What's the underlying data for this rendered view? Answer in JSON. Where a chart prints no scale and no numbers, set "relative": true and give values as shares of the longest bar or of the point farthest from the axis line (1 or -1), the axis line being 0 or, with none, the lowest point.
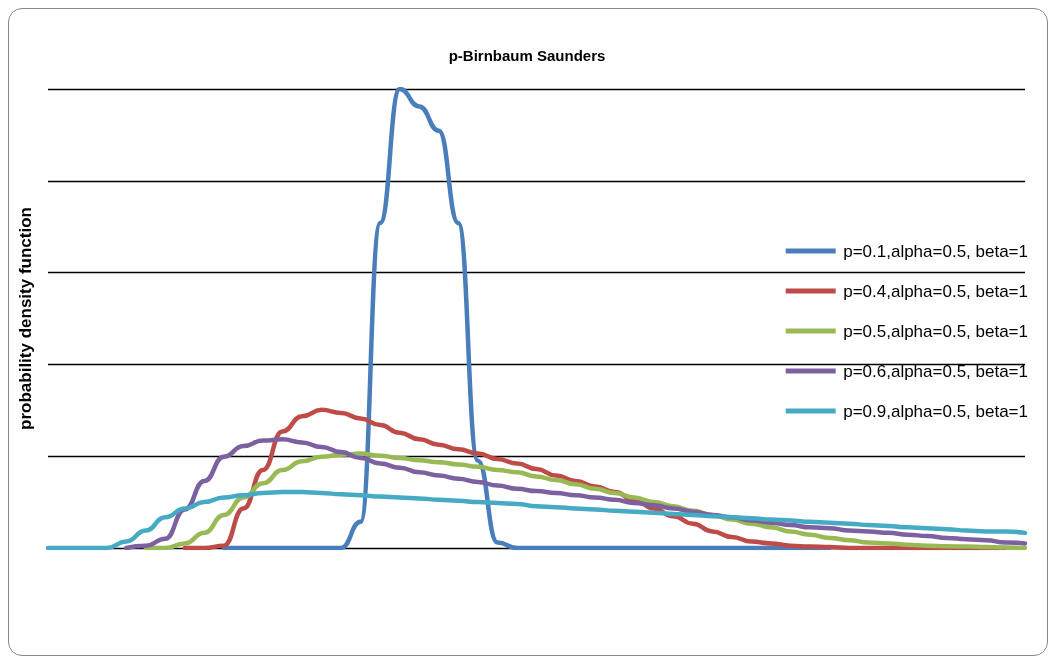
{
  "chart_data": {
    "type": "line",
    "title": "p-Birnbaum Saunders",
    "ylabel": "probability density function",
    "relative": true,
    "grid": "y",
    "legend": "right",
    "marker": "none",
    "line_style": "solid",
    "categories": [
      null,
      null,
      null,
      null,
      null,
      null,
      null,
      null,
      null,
      null,
      null,
      null,
      null,
      null,
      null,
      null,
      null,
      null,
      null,
      null,
      null,
      null,
      null,
      null,
      null,
      null,
      null,
      null,
      null,
      null,
      null,
      null,
      null,
      null,
      null,
      null,
      null,
      null,
      null,
      null,
      null,
      null,
      null,
      null,
      null,
      null,
      null,
      null,
      null,
      null,
      null
    ],
    "series": [
      {
        "name": "p=0.1,alpha=0.5, beta=1",
        "color": "#4a7ebb",
        "values": [
          null,
          null,
          null,
          null,
          null,
          null,
          null,
          null,
          null,
          0,
          0,
          0,
          0,
          0,
          0,
          0,
          0.057,
          0.708,
          1,
          0.962,
          0.909,
          0.708,
          0.19,
          0.012,
          0,
          0,
          0,
          0,
          0,
          0,
          0,
          0,
          0,
          0,
          0,
          0,
          0,
          0,
          0,
          0,
          0,
          null,
          null,
          null,
          null,
          null,
          null,
          null,
          null,
          null,
          null
        ]
      },
      {
        "name": "p=0.4,alpha=0.5, beta=1",
        "color": "#be4b48",
        "values": [
          null,
          null,
          null,
          null,
          null,
          null,
          null,
          0,
          0,
          0.005,
          0.086,
          0.17,
          0.254,
          0.287,
          0.301,
          0.294,
          0.282,
          0.268,
          0.251,
          0.237,
          0.225,
          0.215,
          0.206,
          0.194,
          0.184,
          0.172,
          0.158,
          0.146,
          0.134,
          0.122,
          0.105,
          0.086,
          0.069,
          0.053,
          0.036,
          0.024,
          0.014,
          0.01,
          0.005,
          0.003,
          0.002,
          0,
          0,
          0,
          0,
          0,
          0,
          0,
          0,
          0,
          null
        ]
      },
      {
        "name": "p=0.5,alpha=0.5, beta=1",
        "color": "#98b954",
        "values": [
          null,
          null,
          null,
          null,
          null,
          0,
          0,
          0.01,
          0.033,
          0.072,
          0.11,
          0.141,
          0.17,
          0.189,
          0.199,
          0.203,
          0.206,
          0.201,
          0.196,
          0.191,
          0.187,
          0.182,
          0.177,
          0.17,
          0.165,
          0.156,
          0.148,
          0.139,
          0.129,
          0.12,
          0.11,
          0.1,
          0.091,
          0.081,
          0.072,
          0.062,
          0.053,
          0.045,
          0.036,
          0.029,
          0.022,
          0.017,
          0.012,
          0.01,
          0.007,
          0.005,
          0.004,
          0.003,
          0.002,
          0.001,
          0
        ]
      },
      {
        "name": "p=0.6,alpha=0.5, beta=1",
        "color": "#7d60a0",
        "values": [
          null,
          null,
          null,
          null,
          0,
          0.005,
          0.02,
          0.084,
          0.146,
          0.199,
          0.222,
          0.234,
          0.237,
          0.23,
          0.22,
          0.209,
          0.196,
          0.184,
          0.175,
          0.165,
          0.158,
          0.151,
          0.144,
          0.136,
          0.129,
          0.124,
          0.12,
          0.115,
          0.11,
          0.105,
          0.098,
          0.093,
          0.086,
          0.079,
          0.072,
          0.067,
          0.06,
          0.055,
          0.05,
          0.045,
          0.043,
          0.038,
          0.036,
          0.033,
          0.029,
          0.026,
          0.022,
          0.019,
          0.017,
          0.012,
          0.01
        ]
      },
      {
        "name": "p=0.9,alpha=0.5, beta=1",
        "color": "#46aac5",
        "values": [
          0,
          0,
          0,
          0,
          0.014,
          0.038,
          0.067,
          0.086,
          0.1,
          0.11,
          0.115,
          0.12,
          0.122,
          0.122,
          0.12,
          0.117,
          0.115,
          0.112,
          0.11,
          0.108,
          0.105,
          0.103,
          0.1,
          0.098,
          0.096,
          0.091,
          0.089,
          0.086,
          0.084,
          0.081,
          0.079,
          0.077,
          0.074,
          0.072,
          0.069,
          0.067,
          0.065,
          0.062,
          0.06,
          0.057,
          0.055,
          0.053,
          0.05,
          0.048,
          0.045,
          0.043,
          0.041,
          0.038,
          0.036,
          0.036,
          0.033
        ]
      }
    ]
  }
}
